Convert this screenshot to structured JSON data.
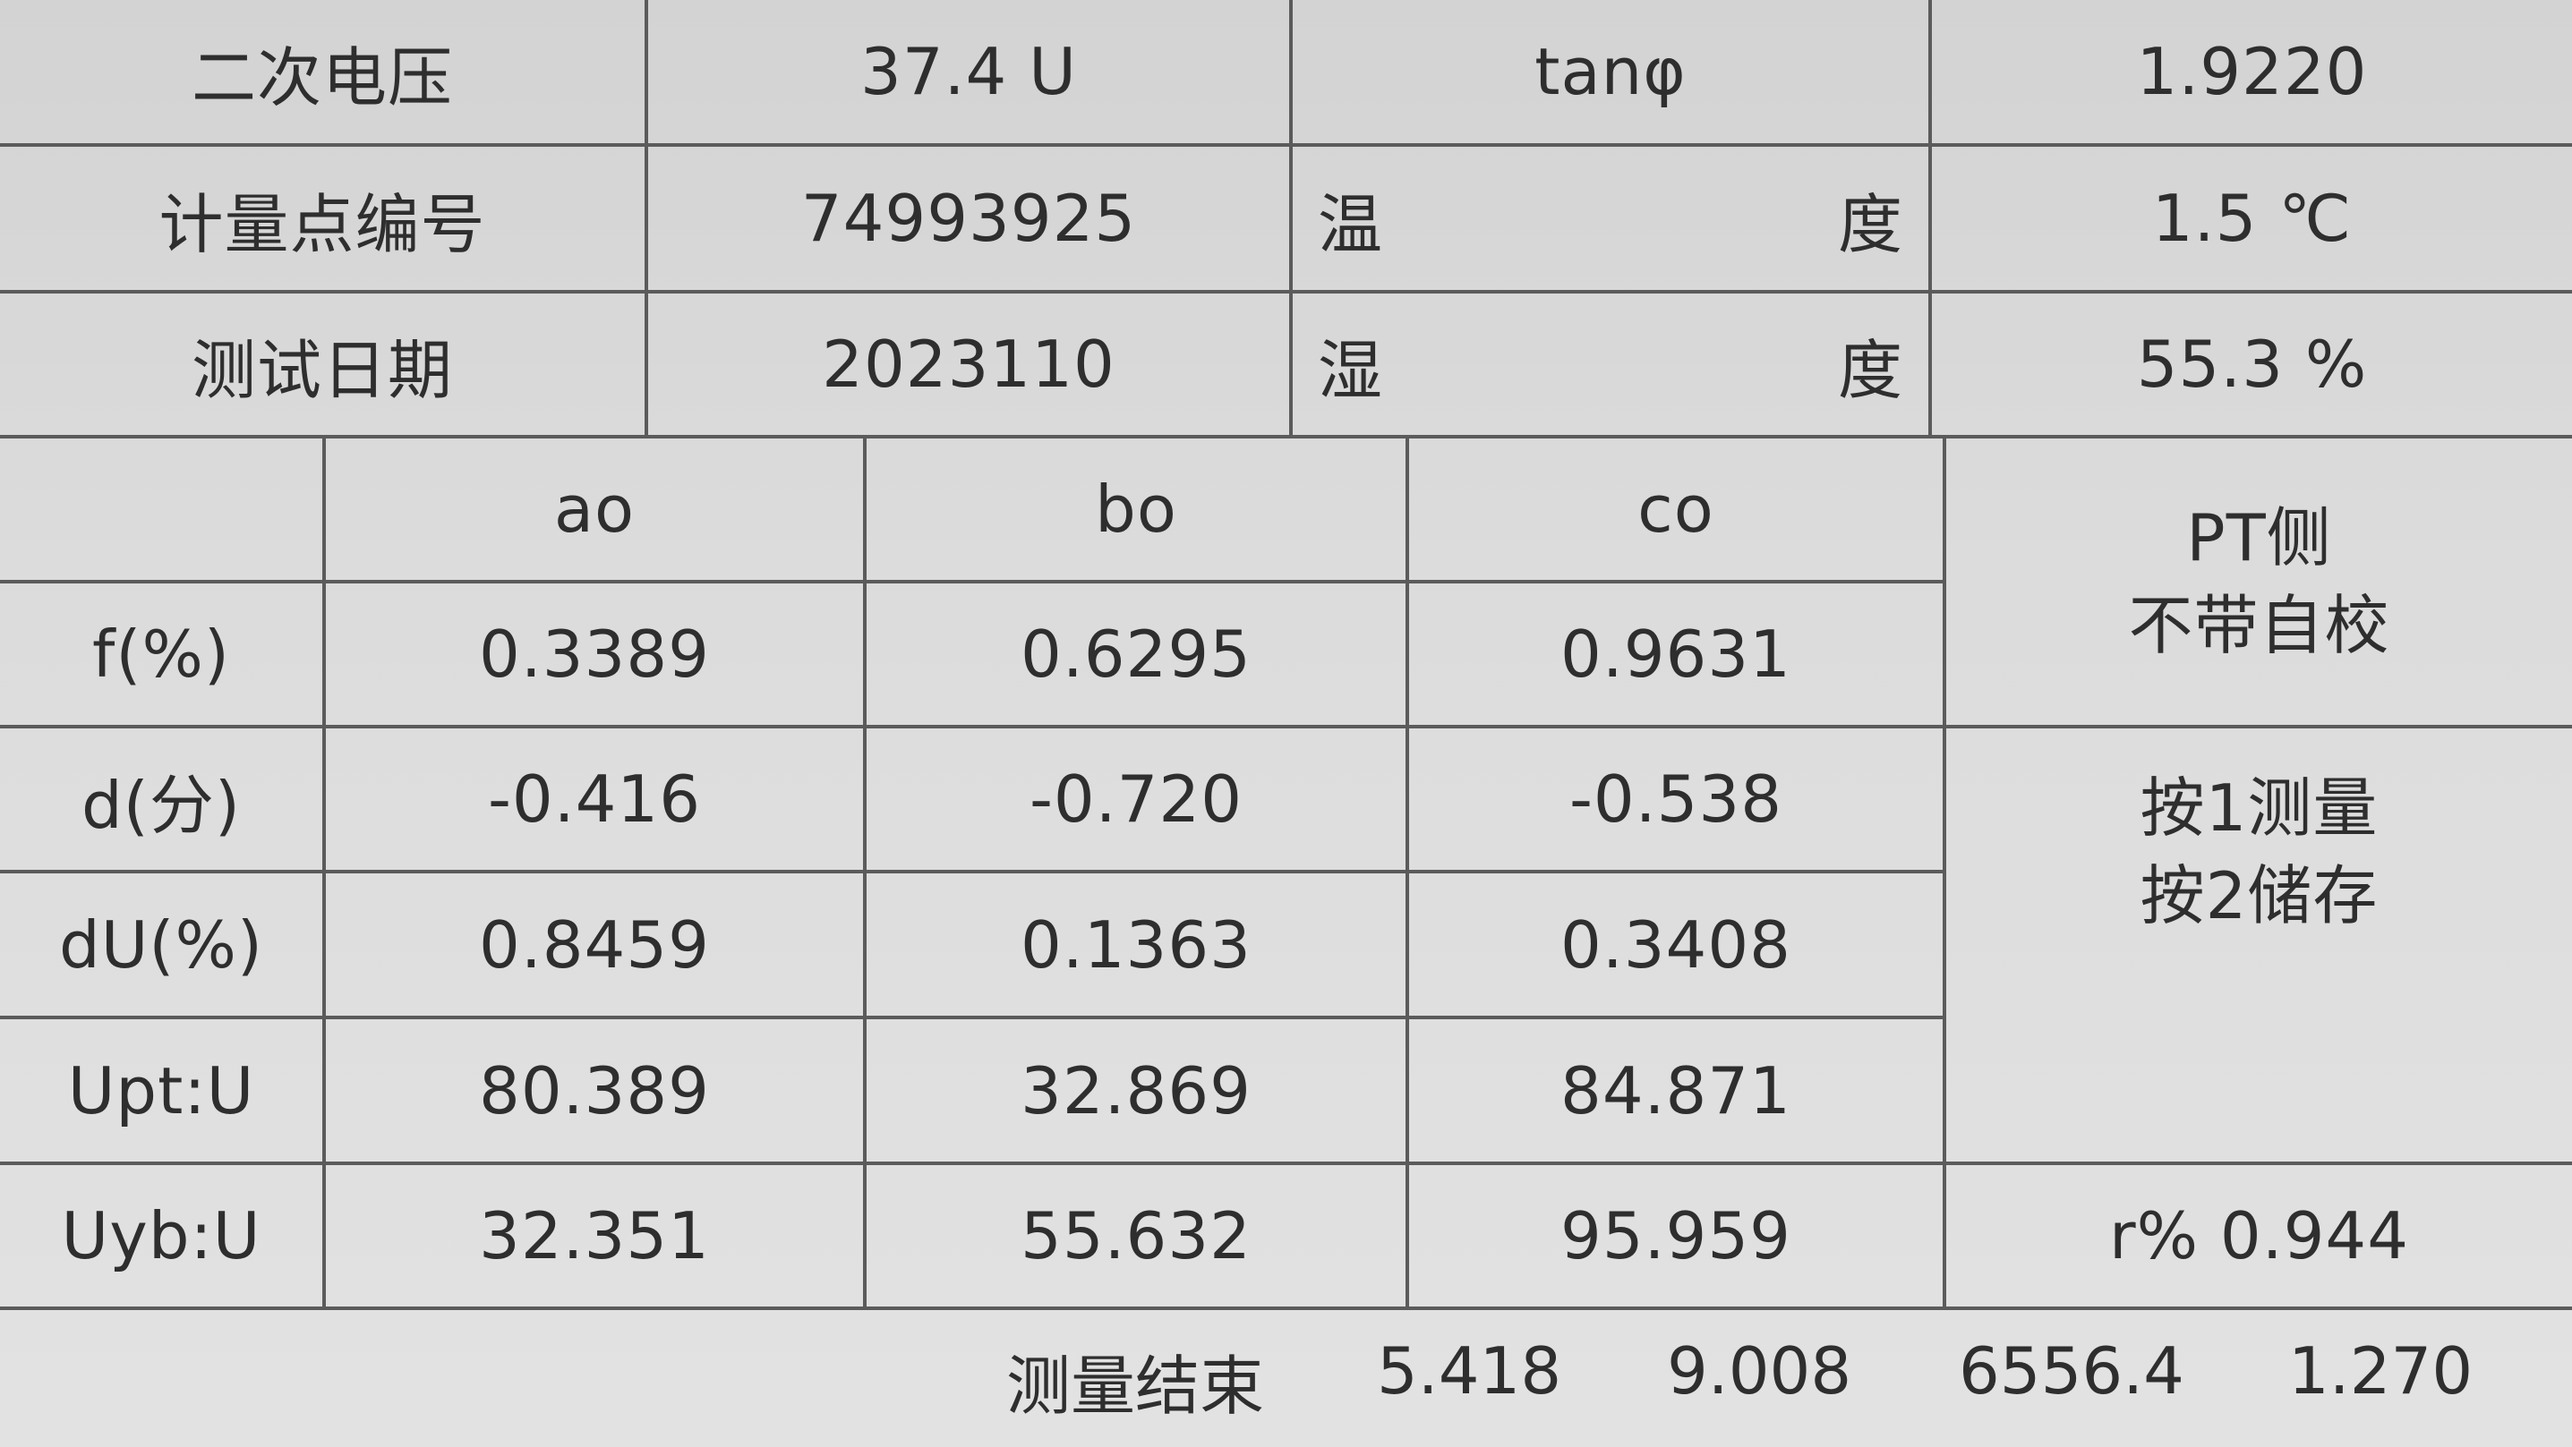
{
  "header": {
    "rows": [
      {
        "label": "二次电压",
        "value": "37.4 U",
        "label2": "tanφ",
        "value2": "1.9220"
      },
      {
        "label": "计量点编号",
        "value": "74993925",
        "label2_left": "温",
        "label2_right": "度",
        "value2": "1.5 ℃"
      },
      {
        "label": "测试日期",
        "value": "2023110",
        "label2_left": "湿",
        "label2_right": "度",
        "value2": "55.3 %"
      }
    ]
  },
  "table": {
    "columns": [
      "ao",
      "bo",
      "co"
    ],
    "rows": [
      {
        "label": "f(%)",
        "values": [
          "0.3389",
          "0.6295",
          "0.9631"
        ]
      },
      {
        "label": "d(分)",
        "values": [
          "-0.416",
          "-0.720",
          "-0.538"
        ]
      },
      {
        "label": "dU(%)",
        "values": [
          "0.8459",
          "0.1363",
          "0.3408"
        ]
      },
      {
        "label": "Upt:U",
        "values": [
          "80.389",
          "32.869",
          "84.871"
        ]
      },
      {
        "label": "Uyb:U",
        "values": [
          "32.351",
          "55.632",
          "95.959"
        ]
      }
    ]
  },
  "side": {
    "mode_line1": "PT侧",
    "mode_line2": "不带自校",
    "hint_line1": "按1测量",
    "hint_line2": "按2储存",
    "ratio": "r% 0.944"
  },
  "footer": {
    "status": "测量结束",
    "values": [
      "5.418",
      "9.008",
      "6556.4",
      "1.270"
    ]
  }
}
